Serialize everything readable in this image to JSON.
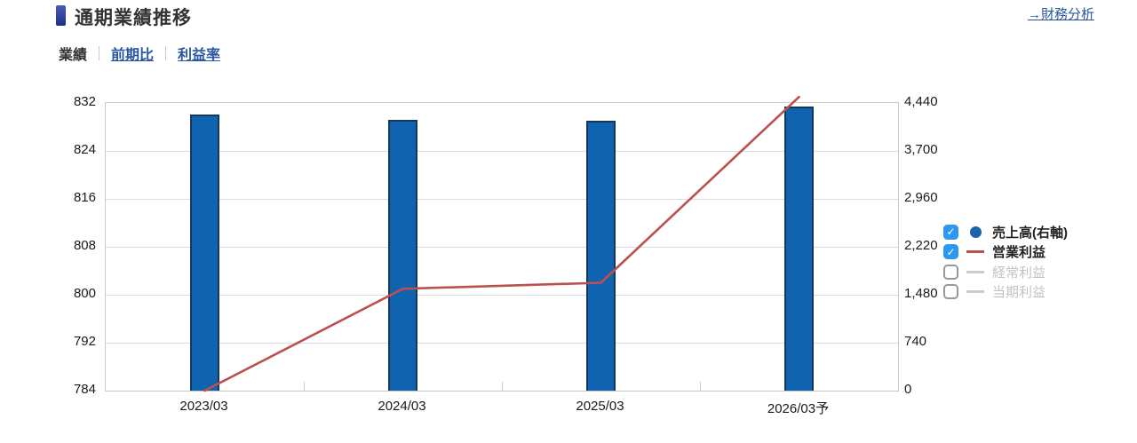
{
  "header": {
    "title": "通期業績推移",
    "link": "→財務分析"
  },
  "tabs": [
    {
      "label": "業績",
      "active": true
    },
    {
      "label": "前期比",
      "active": false
    },
    {
      "label": "利益率",
      "active": false
    }
  ],
  "chart_data": {
    "type": "bar",
    "title": "通期業績推移",
    "categories": [
      "2023/03",
      "2024/03",
      "2025/03",
      "2026/03予"
    ],
    "series": [
      {
        "name": "売上高(右軸)",
        "type": "bar",
        "axis": "right",
        "enabled": true,
        "values": [
          4260,
          4180,
          4165,
          4390
        ],
        "color": "#1063ae",
        "border_color": "#17365c"
      },
      {
        "name": "営業利益",
        "type": "line",
        "axis": "left",
        "enabled": true,
        "values": [
          784,
          801,
          802,
          833
        ],
        "color": "#bc504e"
      },
      {
        "name": "経常利益",
        "type": "line",
        "axis": "left",
        "enabled": false,
        "values": []
      },
      {
        "name": "当期利益",
        "type": "line",
        "axis": "left",
        "enabled": false,
        "values": []
      }
    ],
    "left_axis": {
      "min": 784,
      "max": 832,
      "ticks": [
        832,
        824,
        816,
        808,
        800,
        792,
        784
      ]
    },
    "right_axis": {
      "min": 0,
      "max": 4440,
      "tick_labels": [
        "4,440",
        "3,700",
        "2,960",
        "2,220",
        "1,480",
        "740",
        "0"
      ]
    },
    "grid": true,
    "legend_position": "right"
  },
  "legend": {
    "items": [
      {
        "label": "売上高(右軸)",
        "checked": true,
        "marker": "circle",
        "marker_color": "#1b62ab"
      },
      {
        "label": "営業利益",
        "checked": true,
        "marker": "line",
        "marker_color": "#bc504e"
      },
      {
        "label": "経常利益",
        "checked": false,
        "marker": "line",
        "marker_color": "#cccccc"
      },
      {
        "label": "当期利益",
        "checked": false,
        "marker": "line",
        "marker_color": "#cccccc"
      }
    ],
    "check_glyph": "✓"
  },
  "colors": {
    "bar_fill": "#1063ae",
    "bar_border": "#17365c",
    "line": "#bc504e",
    "checked_box": "#2e97ef",
    "link": "#2a55a2",
    "grid": "#dddddd",
    "axis_border": "#cccccc"
  }
}
